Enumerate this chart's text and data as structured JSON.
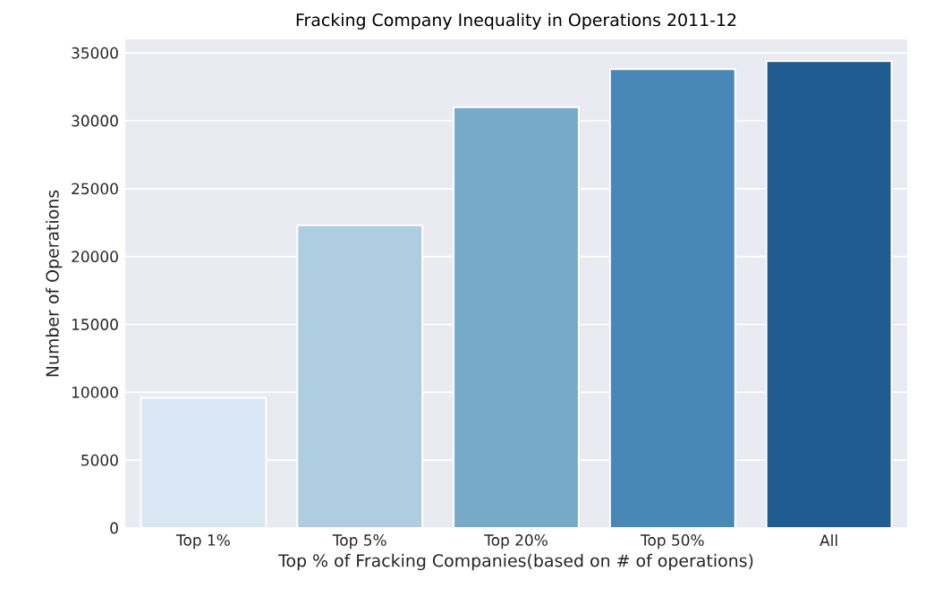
{
  "chart_data": {
    "type": "bar",
    "title": "Fracking Company Inequality in Operations 2011-12",
    "xlabel": "Top % of Fracking Companies(based on # of operations)",
    "ylabel": "Number of Operations",
    "categories": [
      "Top 1%",
      "Top 5%",
      "Top 20%",
      "Top 50%",
      "All"
    ],
    "values": [
      9600,
      22300,
      31000,
      33800,
      34400
    ],
    "colors": [
      "#d9e6f3",
      "#afcde0",
      "#77aac8",
      "#4887b6",
      "#205b91"
    ],
    "ylim": [
      0,
      36000
    ],
    "yticks": [
      0,
      5000,
      10000,
      15000,
      20000,
      25000,
      30000,
      35000
    ],
    "grid": "y"
  }
}
